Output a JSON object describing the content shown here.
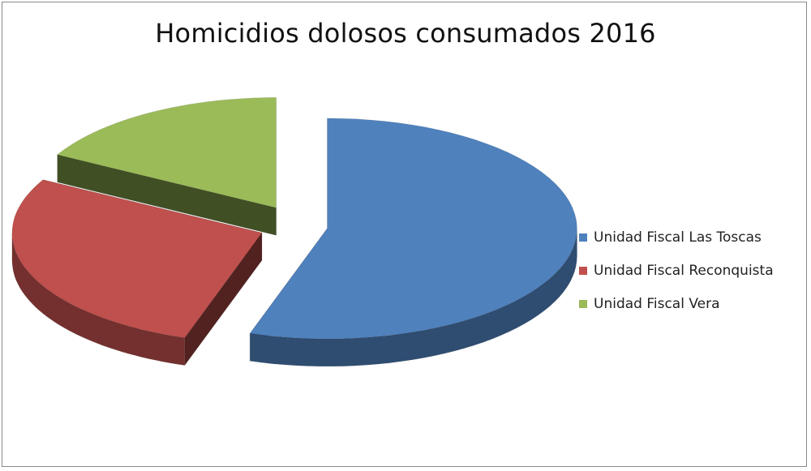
{
  "chart_data": {
    "type": "pie",
    "title": "Homicidios dolosos consumados 2016",
    "categories": [
      "Unidad Fiscal Las Toscas",
      "Unidad Fiscal Reconquista",
      "Unidad Fiscal Vera"
    ],
    "values": [
      55,
      28,
      17
    ],
    "colors": [
      "#4f81bd",
      "#c0504d",
      "#9bbb59"
    ],
    "style": "3d-exploded",
    "legend_position": "right"
  }
}
